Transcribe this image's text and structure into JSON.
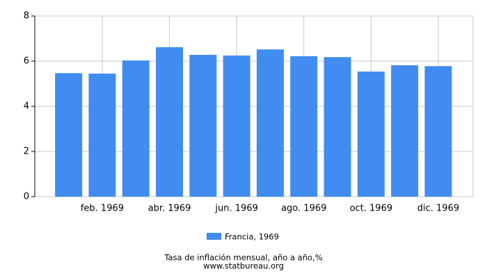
{
  "chart_data": {
    "type": "bar",
    "categories": [
      null,
      "feb. 1969",
      null,
      "abr. 1969",
      null,
      "jun. 1969",
      null,
      "ago. 1969",
      null,
      "oct. 1969",
      null,
      "dic. 1969"
    ],
    "series": [
      {
        "name": "Francia, 1969",
        "color": "#418cf0",
        "values": [
          5.47,
          5.45,
          6.03,
          6.62,
          6.28,
          6.25,
          6.52,
          6.22,
          6.18,
          5.54,
          5.82,
          5.78
        ]
      }
    ],
    "ylim": [
      0,
      8
    ],
    "yticks": [
      0,
      2,
      4,
      6,
      8
    ],
    "grid": true,
    "caption": "Tasa de inflación mensual, año a año,%",
    "source": "www.statbureau.org"
  }
}
